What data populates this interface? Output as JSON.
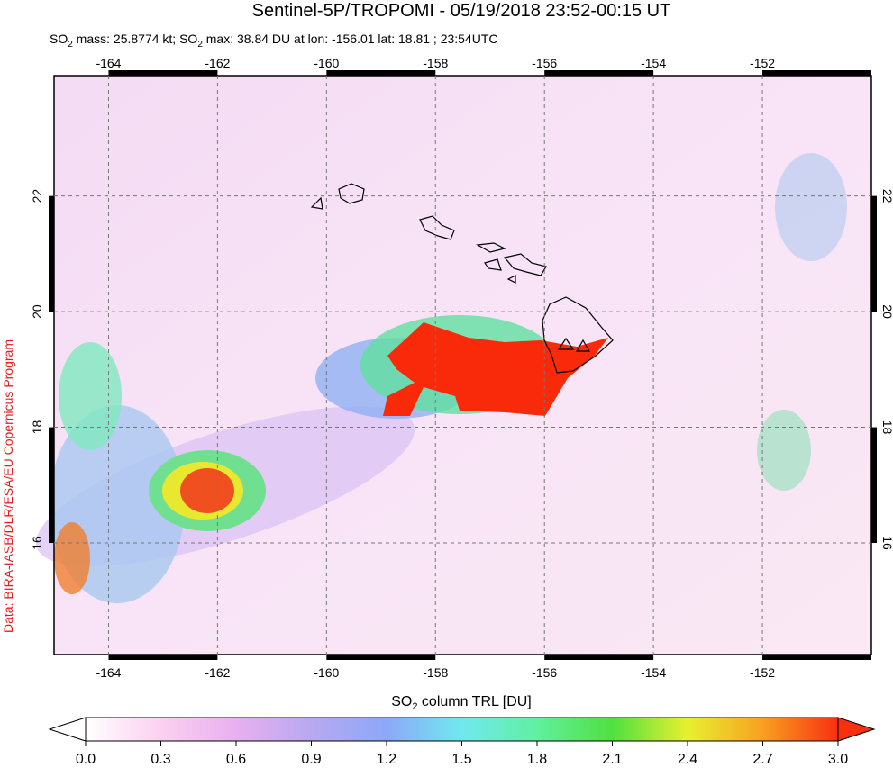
{
  "title": "Sentinel-5P/TROPOMI - 05/19/2018 23:52-00:15 UT",
  "subtitle": [
    "SO",
    "2",
    " mass: 25.8774 kt; SO",
    "2",
    " max: 38.84 DU at lon: -156.01 lat: 18.81 ; 23:54UTC"
  ],
  "credit": "Data: BIRA-IASB/DLR/ESA/EU Copernicus Program",
  "map": {
    "lonlim": [
      -165,
      -150
    ],
    "latlim": [
      14.07,
      24.08
    ],
    "lonticks": [
      -164,
      -162,
      -160,
      -158,
      -156,
      -154,
      -152
    ],
    "latticks": [
      16,
      18,
      20,
      22
    ]
  },
  "colorbar": {
    "label": [
      "SO",
      "2",
      " column TRL [DU]"
    ],
    "lim": [
      0,
      3
    ],
    "ticks": [
      {
        "value": 0,
        "label": "0.0"
      },
      {
        "value": 0.3,
        "label": "0.3"
      },
      {
        "value": 0.6,
        "label": "0.6"
      },
      {
        "value": 0.9,
        "label": "0.9"
      },
      {
        "value": 1.2,
        "label": "1.2"
      },
      {
        "value": 1.5,
        "label": "1.5"
      },
      {
        "value": 1.8,
        "label": "1.8"
      },
      {
        "value": 2.1,
        "label": "2.1"
      },
      {
        "value": 2.4,
        "label": "2.4"
      },
      {
        "value": 2.7,
        "label": "2.7"
      },
      {
        "value": 3,
        "label": "3.0"
      }
    ]
  }
}
